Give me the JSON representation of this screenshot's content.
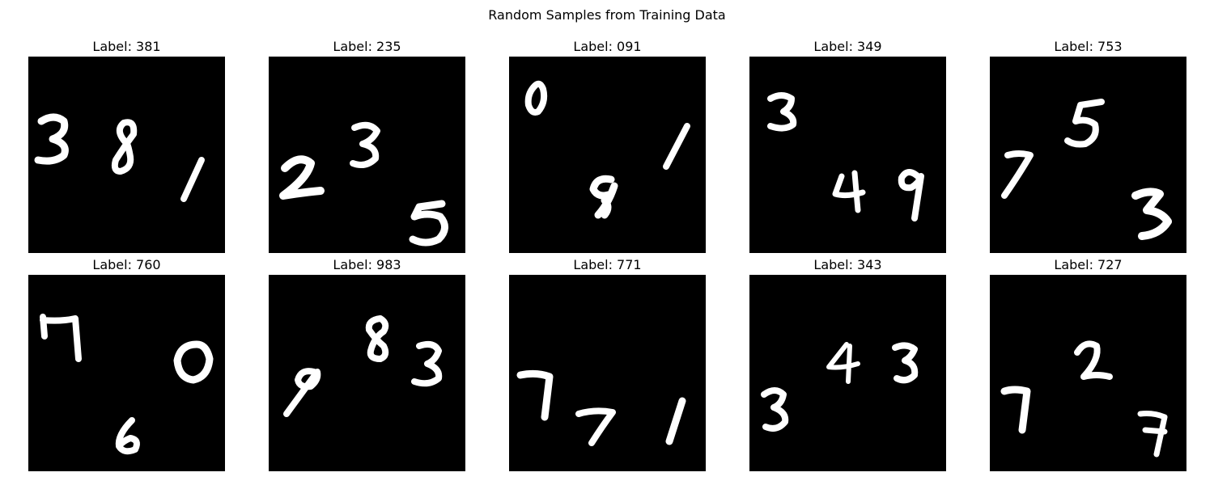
{
  "figure": {
    "title": "Random Samples from Training Data"
  },
  "panels": [
    {
      "label": "Label: 381",
      "digits": "381"
    },
    {
      "label": "Label: 235",
      "digits": "235"
    },
    {
      "label": "Label: 091",
      "digits": "091"
    },
    {
      "label": "Label: 349",
      "digits": "349"
    },
    {
      "label": "Label: 753",
      "digits": "753"
    },
    {
      "label": "Label: 760",
      "digits": "760"
    },
    {
      "label": "Label: 983",
      "digits": "983"
    },
    {
      "label": "Label: 771",
      "digits": "771"
    },
    {
      "label": "Label: 343",
      "digits": "343"
    },
    {
      "label": "Label: 727",
      "digits": "727"
    }
  ],
  "colors": {
    "image_background": "#000000",
    "digit_stroke": "#ffffff"
  }
}
